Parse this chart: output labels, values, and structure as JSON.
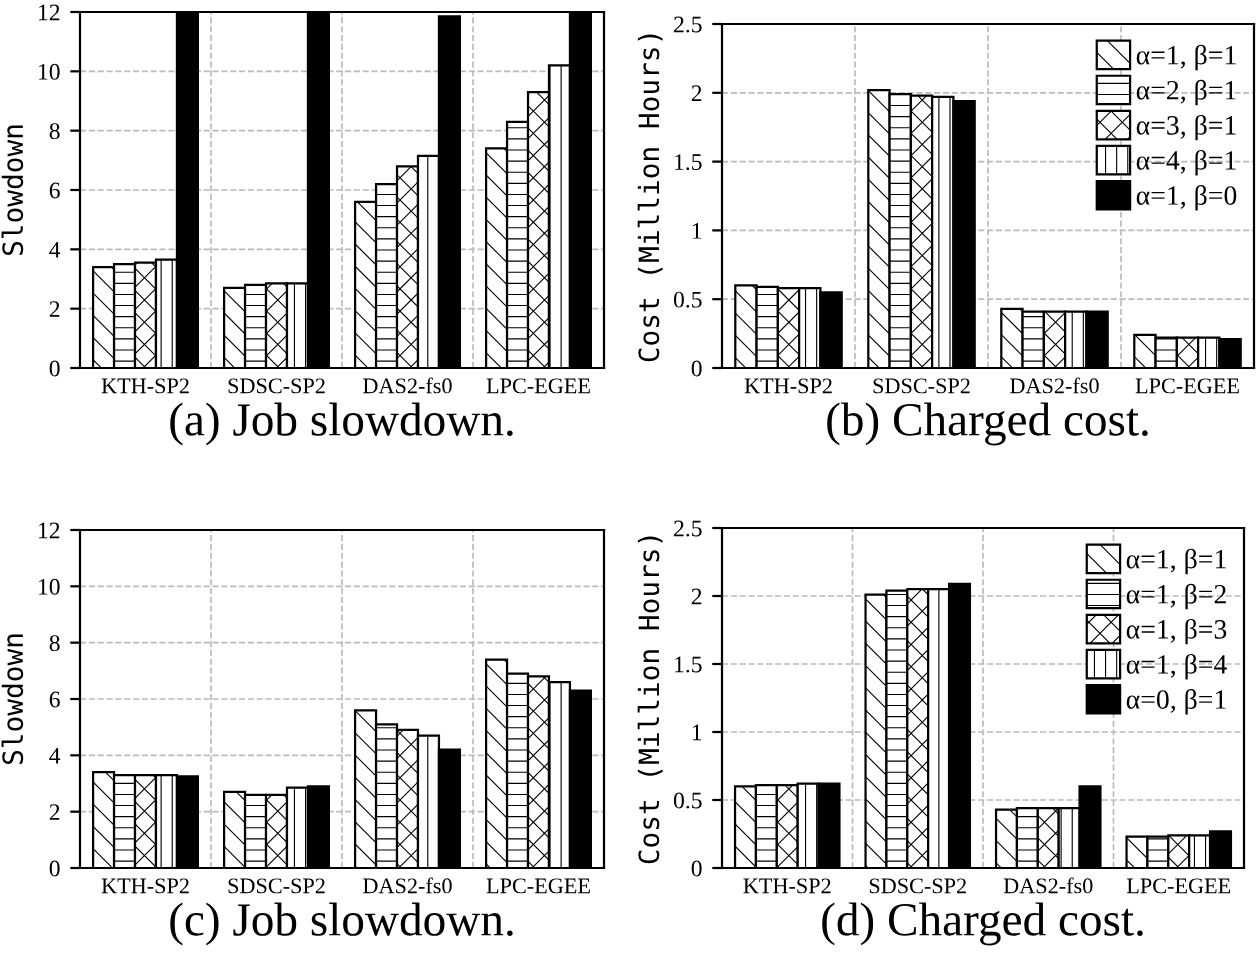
{
  "chart_data": [
    {
      "type": "bar",
      "title": "(a) Job slowdown.",
      "ylabel": "Slowdown",
      "categories": [
        "KTH-SP2",
        "SDSC-SP2",
        "DAS2-fs0",
        "LPC-EGEE"
      ],
      "ylim": [
        0,
        12
      ],
      "yticks": [
        0,
        2,
        4,
        6,
        8,
        10,
        12
      ],
      "grid": true,
      "legend": false,
      "series": [
        {
          "color": "#ffffff",
          "values": [
            3.4,
            2.7,
            5.6,
            7.4
          ]
        },
        {
          "color": "#ffffff",
          "values": [
            3.5,
            2.8,
            6.2,
            8.3
          ]
        },
        {
          "color": "#ffffff",
          "values": [
            3.55,
            2.85,
            6.8,
            9.3
          ]
        },
        {
          "color": "#ffffff",
          "values": [
            3.65,
            2.85,
            7.15,
            10.2
          ]
        },
        {
          "color": "#000000",
          "values": [
            12,
            12,
            11.85,
            12
          ]
        }
      ]
    },
    {
      "type": "bar",
      "title": "(b) Charged cost.",
      "ylabel": "Cost (Million Hours)",
      "categories": [
        "KTH-SP2",
        "SDSC-SP2",
        "DAS2-fs0",
        "LPC-EGEE"
      ],
      "ylim": [
        0,
        2.5
      ],
      "yticks": [
        0,
        0.5,
        1,
        1.5,
        2,
        2.5
      ],
      "grid": true,
      "legend": "top right",
      "series": [
        {
          "name": "α=1, β=1",
          "color": "#ffffff",
          "values": [
            0.6,
            2.02,
            0.43,
            0.24
          ]
        },
        {
          "name": "α=2, β=1",
          "color": "#ffffff",
          "values": [
            0.59,
            1.99,
            0.41,
            0.22
          ]
        },
        {
          "name": "α=3, β=1",
          "color": "#ffffff",
          "values": [
            0.58,
            1.98,
            0.41,
            0.22
          ]
        },
        {
          "name": "α=4, β=1",
          "color": "#ffffff",
          "values": [
            0.58,
            1.97,
            0.41,
            0.22
          ]
        },
        {
          "name": "α=1, β=0",
          "color": "#000000",
          "values": [
            0.55,
            1.94,
            0.41,
            0.21
          ]
        }
      ]
    },
    {
      "type": "bar",
      "title": "(c) Job slowdown.",
      "ylabel": "Slowdown",
      "categories": [
        "KTH-SP2",
        "SDSC-SP2",
        "DAS2-fs0",
        "LPC-EGEE"
      ],
      "ylim": [
        0,
        12
      ],
      "yticks": [
        0,
        2,
        4,
        6,
        8,
        10,
        12
      ],
      "grid": true,
      "legend": false,
      "series": [
        {
          "color": "#ffffff",
          "values": [
            3.4,
            2.7,
            5.6,
            7.4
          ]
        },
        {
          "color": "#ffffff",
          "values": [
            3.3,
            2.6,
            5.1,
            6.9
          ]
        },
        {
          "color": "#ffffff",
          "values": [
            3.3,
            2.6,
            4.9,
            6.8
          ]
        },
        {
          "color": "#ffffff",
          "values": [
            3.3,
            2.85,
            4.7,
            6.6
          ]
        },
        {
          "color": "#000000",
          "values": [
            3.25,
            2.9,
            4.2,
            6.3
          ]
        }
      ]
    },
    {
      "type": "bar",
      "title": "(d) Charged cost.",
      "ylabel": "Cost (Million Hours)",
      "categories": [
        "KTH-SP2",
        "SDSC-SP2",
        "DAS2-fs0",
        "LPC-EGEE"
      ],
      "ylim": [
        0,
        2.5
      ],
      "yticks": [
        0,
        0.5,
        1,
        1.5,
        2,
        2.5
      ],
      "grid": true,
      "legend": "top right",
      "series": [
        {
          "name": "α=1, β=1",
          "color": "#ffffff",
          "values": [
            0.6,
            2.01,
            0.43,
            0.23
          ]
        },
        {
          "name": "α=1, β=2",
          "color": "#ffffff",
          "values": [
            0.61,
            2.04,
            0.44,
            0.23
          ]
        },
        {
          "name": "α=1, β=3",
          "color": "#ffffff",
          "values": [
            0.61,
            2.05,
            0.44,
            0.24
          ]
        },
        {
          "name": "α=1, β=4",
          "color": "#ffffff",
          "values": [
            0.62,
            2.05,
            0.44,
            0.24
          ]
        },
        {
          "name": "α=0, β=1",
          "color": "#000000",
          "values": [
            0.62,
            2.09,
            0.6,
            0.27
          ]
        }
      ]
    }
  ]
}
